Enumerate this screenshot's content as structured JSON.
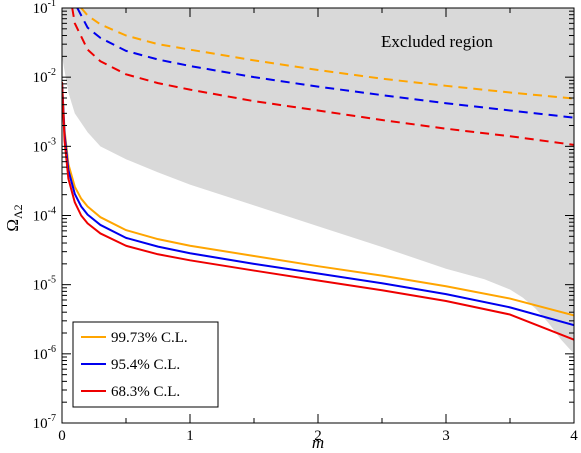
{
  "chart_data": {
    "type": "line",
    "title": "",
    "xlabel": "m",
    "ylabel": "Ω_Λ2",
    "ylabel_main": "Ω",
    "ylabel_sub": "Λ2",
    "x_scale": "linear",
    "y_scale": "log",
    "xlim": [
      0,
      4
    ],
    "ylim": [
      1e-07,
      0.1
    ],
    "grid": false,
    "legend_position": "bottom-left",
    "x_ticks": [
      {
        "value": 0,
        "label": "0"
      },
      {
        "value": 1,
        "label": "1"
      },
      {
        "value": 2,
        "label": "2"
      },
      {
        "value": 3,
        "label": "3"
      },
      {
        "value": 4,
        "label": "4"
      }
    ],
    "y_ticks": [
      {
        "exp": -7,
        "base": "10",
        "sup": "-7"
      },
      {
        "exp": -6,
        "base": "10",
        "sup": "-6"
      },
      {
        "exp": -5,
        "base": "10",
        "sup": "-5"
      },
      {
        "exp": -4,
        "base": "10",
        "sup": "-4"
      },
      {
        "exp": -3,
        "base": "10",
        "sup": "-3"
      },
      {
        "exp": -2,
        "base": "10",
        "sup": "-2"
      },
      {
        "exp": -1,
        "base": "10",
        "sup": "-1"
      }
    ],
    "annotation": "Excluded region",
    "excluded_region": {
      "color": "#d9d9d9",
      "lower_boundary": {
        "x": [
          0.0,
          0.05,
          0.1,
          0.2,
          0.3,
          0.5,
          0.75,
          1.0,
          1.5,
          2.0,
          2.5,
          3.0,
          3.3,
          3.5,
          3.6,
          3.7,
          3.8,
          3.9,
          4.0
        ],
        "y": [
          0.02,
          0.006,
          0.003,
          0.0016,
          0.001,
          0.00065,
          0.00042,
          0.00028,
          0.00014,
          7e-05,
          3.5e-05,
          1.7e-05,
          1.2e-05,
          8.5e-06,
          6.5e-06,
          4.5e-06,
          2.8e-06,
          1.6e-06,
          1e-06
        ]
      }
    },
    "series": [
      {
        "name": "99.73% C.L.",
        "color": "#ffa500",
        "style": "solid",
        "x": [
          0.0,
          0.02,
          0.05,
          0.1,
          0.15,
          0.2,
          0.3,
          0.5,
          0.75,
          1.0,
          1.5,
          2.0,
          2.5,
          3.0,
          3.5,
          4.0
        ],
        "y": [
          0.0085,
          0.0017,
          0.00055,
          0.00026,
          0.000175,
          0.000135,
          9.45e-05,
          6.15e-05,
          4.55e-05,
          3.65e-05,
          2.6e-05,
          1.85e-05,
          1.35e-05,
          9.5e-06,
          6.3e-06,
          3.6e-06
        ]
      },
      {
        "name": "95.4% C.L.",
        "color": "#0000ee",
        "style": "solid",
        "x": [
          0.0,
          0.02,
          0.05,
          0.1,
          0.15,
          0.2,
          0.3,
          0.5,
          0.75,
          1.0,
          1.5,
          2.0,
          2.5,
          3.0,
          3.5,
          4.0
        ],
        "y": [
          0.0085,
          0.0015,
          0.00045,
          0.000205,
          0.000135,
          0.000103,
          7.3e-05,
          4.75e-05,
          3.55e-05,
          2.85e-05,
          2e-05,
          1.45e-05,
          1.05e-05,
          7.3e-06,
          4.7e-06,
          2.6e-06
        ]
      },
      {
        "name": "68.3% C.L.",
        "color": "#ee0000",
        "style": "solid",
        "x": [
          0.0,
          0.02,
          0.05,
          0.1,
          0.15,
          0.2,
          0.3,
          0.5,
          0.75,
          1.0,
          1.5,
          2.0,
          2.5,
          3.0,
          3.5,
          4.0
        ],
        "y": [
          0.0085,
          0.0012,
          0.00034,
          0.000155,
          0.0001,
          7.7e-05,
          5.5e-05,
          3.65e-05,
          2.75e-05,
          2.25e-05,
          1.6e-05,
          1.15e-05,
          8.3e-06,
          5.8e-06,
          3.7e-06,
          1.6e-06
        ]
      },
      {
        "name": "99.73% C.L. (dashed)",
        "color": "#ffa500",
        "style": "dashed",
        "x": [
          0.15,
          0.2,
          0.3,
          0.5,
          0.75,
          1.0,
          1.5,
          2.0,
          2.5,
          3.0,
          3.5,
          4.0
        ],
        "y": [
          0.1,
          0.078,
          0.058,
          0.04,
          0.03,
          0.025,
          0.0175,
          0.0127,
          0.0095,
          0.0075,
          0.006,
          0.0049
        ]
      },
      {
        "name": "95.4% C.L. (dashed)",
        "color": "#0000ee",
        "style": "dashed",
        "x": [
          0.12,
          0.2,
          0.3,
          0.5,
          0.75,
          1.0,
          1.5,
          2.0,
          2.5,
          3.0,
          3.5,
          4.0
        ],
        "y": [
          0.1,
          0.052,
          0.037,
          0.024,
          0.018,
          0.0145,
          0.01,
          0.0073,
          0.0055,
          0.0042,
          0.0033,
          0.0026
        ]
      },
      {
        "name": "68.3% C.L. (dashed)",
        "color": "#ee0000",
        "style": "dashed",
        "x": [
          0.08,
          0.1,
          0.2,
          0.3,
          0.5,
          0.75,
          1.0,
          1.5,
          2.0,
          2.5,
          3.0,
          3.5,
          4.0
        ],
        "y": [
          0.1,
          0.06,
          0.025,
          0.017,
          0.011,
          0.0082,
          0.0066,
          0.0045,
          0.0033,
          0.0024,
          0.0018,
          0.0014,
          0.00105
        ]
      }
    ],
    "legend": [
      {
        "label": "99.73% C.L.",
        "color": "#ffa500"
      },
      {
        "label": "95.4% C.L.",
        "color": "#0000ee"
      },
      {
        "label": "68.3% C.L.",
        "color": "#ee0000"
      }
    ]
  }
}
